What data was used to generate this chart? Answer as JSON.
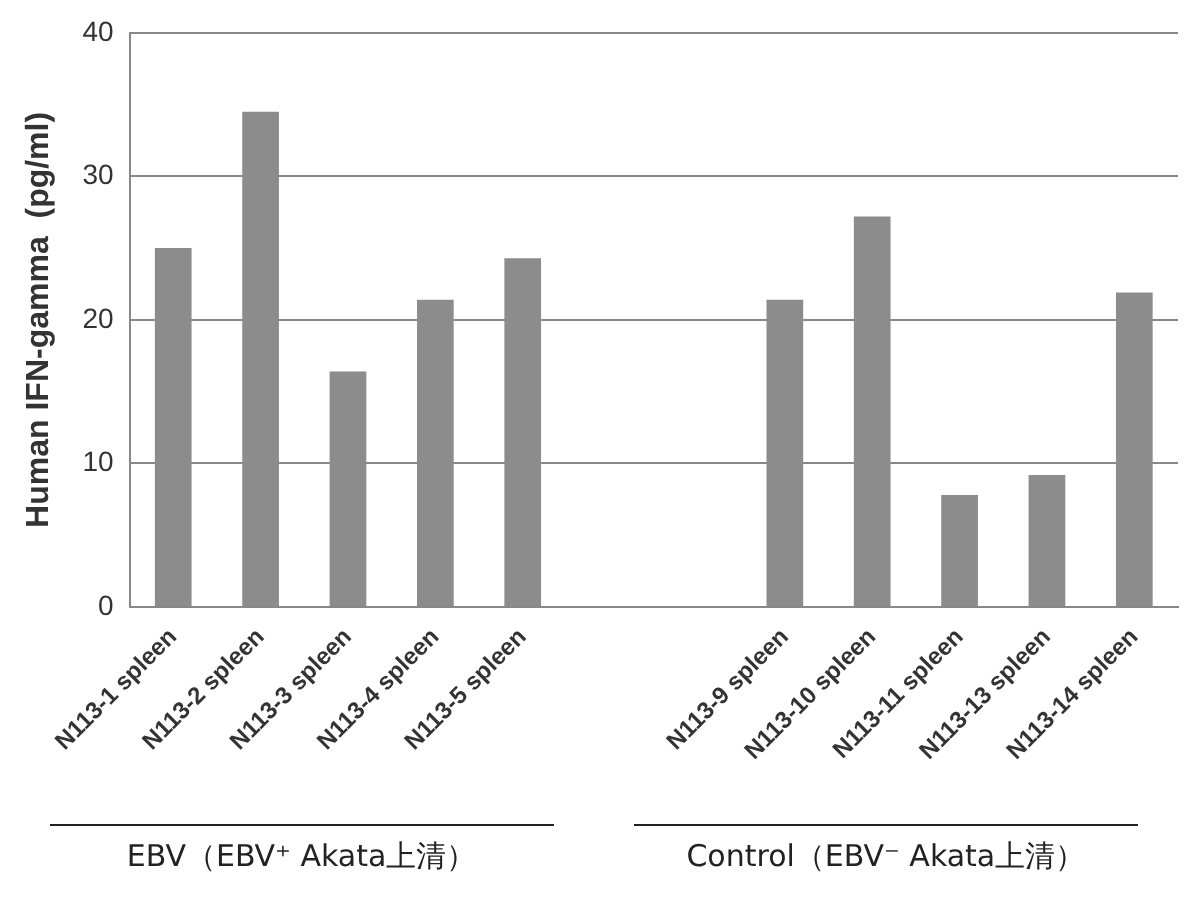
{
  "chart_data": {
    "type": "bar",
    "ylabel": "Human IFN-gamma  (pg/ml)",
    "categories": [
      "N113-1 spleen",
      "N113-2 spleen",
      "N113-3 spleen",
      "N113-4 spleen",
      "N113-5 spleen",
      null,
      null,
      "N113-9 spleen",
      "N113-10 spleen",
      "N113-11 spleen",
      "N113-13 spleen",
      "N113-14 spleen"
    ],
    "values": [
      25.0,
      34.5,
      16.4,
      21.4,
      24.3,
      null,
      null,
      21.4,
      27.2,
      7.8,
      9.2,
      21.9
    ],
    "color": "#8c8c8c",
    "ylim": [
      0,
      40
    ],
    "yticks": [
      0,
      10,
      20,
      30,
      40
    ],
    "grid": "y",
    "legend": false,
    "annotations": [
      "EBV（EBV⁺ Akata上清）",
      "Control（EBV⁻ Akata上清）"
    ]
  }
}
